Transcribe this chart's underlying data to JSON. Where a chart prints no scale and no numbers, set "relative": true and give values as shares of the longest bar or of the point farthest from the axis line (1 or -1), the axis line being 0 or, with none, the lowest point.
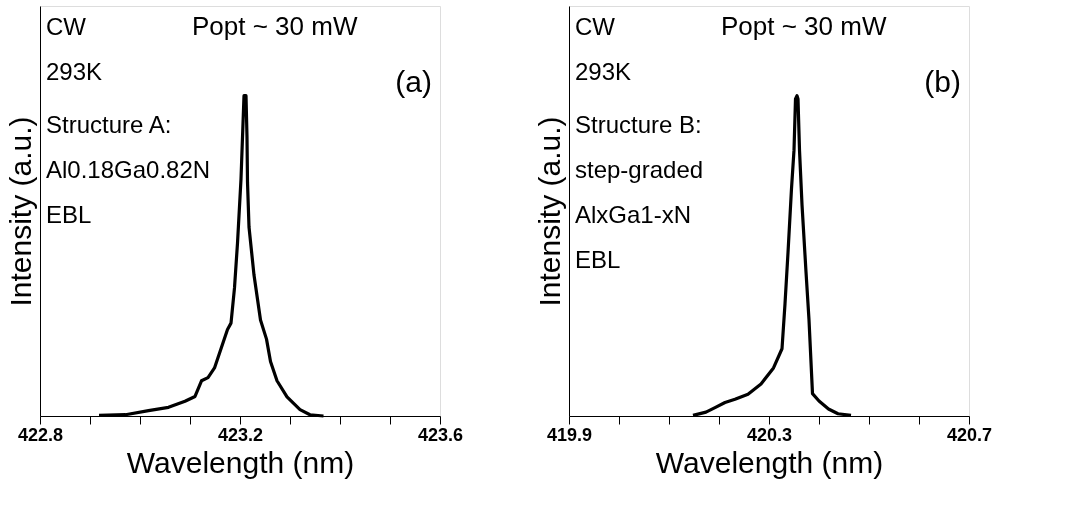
{
  "chart_data": [
    {
      "type": "line",
      "relative": true,
      "tick_labels": "x",
      "xlabel": "Wavelength (nm)",
      "ylabel": "Intensity (a.u.)",
      "xlim": [
        422.8,
        423.6
      ],
      "xticks": [
        422.8,
        {
          "value": 422.9,
          "label": null
        },
        {
          "value": 423.0,
          "label": null
        },
        {
          "value": 423.1,
          "label": null
        },
        423.2,
        {
          "value": 423.3,
          "label": null
        },
        {
          "value": 423.4,
          "label": null
        },
        {
          "value": 423.5,
          "label": null
        },
        423.6
      ],
      "annotations": [
        "Popt ~ 30 mW",
        "(a)",
        "CW",
        "293K",
        "Structure A:",
        "Al0.18Ga0.82N",
        "EBL"
      ],
      "series": [
        {
          "color": "#000000",
          "x": [
            422.918,
            422.971,
            423.017,
            423.057,
            423.09,
            423.11,
            423.123,
            423.136,
            423.149,
            423.162,
            423.175,
            423.182,
            423.189,
            423.195,
            423.202,
            423.205,
            423.208,
            423.212,
            423.214,
            423.215,
            423.218,
            423.228,
            423.241,
            423.253,
            423.261,
            423.274,
            423.294,
            423.32,
            423.34,
            423.367
          ],
          "values": [
            0.002,
            0.004,
            0.017,
            0.027,
            0.046,
            0.061,
            0.11,
            0.12,
            0.15,
            0.21,
            0.27,
            0.29,
            0.4,
            0.54,
            0.74,
            0.87,
            1,
            1,
            0.87,
            0.73,
            0.59,
            0.44,
            0.3,
            0.24,
            0.17,
            0.11,
            0.06,
            0.02,
            0.004,
            0
          ]
        }
      ]
    },
    {
      "type": "line",
      "relative": true,
      "tick_labels": "x",
      "xlabel": "Wavelength (nm)",
      "ylabel": "Intensity (a.u.)",
      "xlim": [
        419.9,
        420.7
      ],
      "xticks": [
        419.9,
        {
          "value": 420.0,
          "label": null
        },
        {
          "value": 420.1,
          "label": null
        },
        {
          "value": 420.2,
          "label": null
        },
        420.3,
        {
          "value": 420.4,
          "label": null
        },
        {
          "value": 420.5,
          "label": null
        },
        {
          "value": 420.6,
          "label": null
        },
        420.7
      ],
      "annotations": [
        "Popt ~ 30 mW",
        "(b)",
        "CW",
        "293K",
        "Structure B:",
        "step-graded",
        "AlxGa1-xN",
        "EBL"
      ],
      "series": [
        {
          "color": "#000000",
          "x": [
            420.148,
            420.174,
            420.193,
            420.212,
            420.232,
            420.258,
            420.284,
            420.309,
            420.326,
            420.332,
            420.338,
            420.345,
            420.35,
            420.353,
            420.356,
            420.358,
            420.361,
            420.366,
            420.374,
            420.38,
            420.387,
            420.4,
            420.419,
            420.438,
            420.464
          ],
          "values": [
            0.002,
            0.012,
            0.027,
            0.042,
            0.052,
            0.068,
            0.1,
            0.15,
            0.21,
            0.35,
            0.51,
            0.71,
            0.83,
            0.99,
            1,
            0.99,
            0.83,
            0.66,
            0.45,
            0.3,
            0.07,
            0.047,
            0.022,
            0.007,
            0.002
          ]
        }
      ]
    }
  ]
}
